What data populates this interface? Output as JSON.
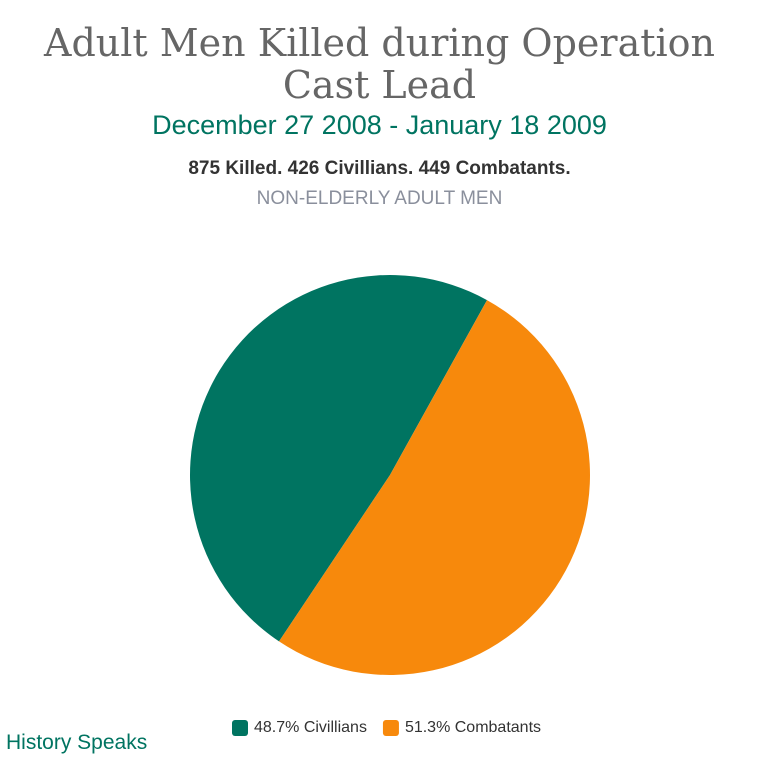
{
  "chart_data": {
    "type": "pie",
    "title": "Adult Men Killed during Operation Cast Lead",
    "subtitle": "December 27 2008 - January 18 2009",
    "summary": "875 Killed. 426 Civillians. 449 Combatants.",
    "note": "NON-ELDERLY ADULT MEN",
    "footer": "History Speaks",
    "categories": [
      "48.7% Civillians",
      "51.3% Combatants"
    ],
    "values": [
      48.7,
      51.3
    ],
    "colors": [
      "#007461",
      "#f7890c"
    ],
    "legend": "bottom"
  }
}
